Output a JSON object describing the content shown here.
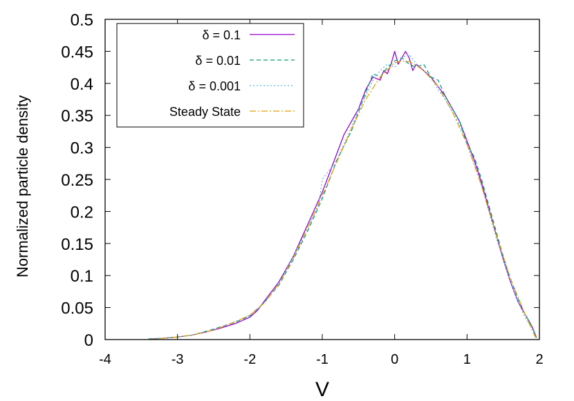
{
  "chart_data": {
    "type": "line",
    "xlabel": "V",
    "ylabel": "Normalized particle density",
    "xlim": [
      -4,
      2
    ],
    "ylim": [
      0,
      0.5
    ],
    "xticks": [
      -4,
      -3,
      -2,
      -1,
      0,
      1,
      2
    ],
    "xtick_labels": [
      "-4",
      "-3",
      "-2",
      "-1",
      "0",
      "1",
      "2"
    ],
    "yticks": [
      0,
      0.05,
      0.1,
      0.15,
      0.2,
      0.25,
      0.3,
      0.35,
      0.4,
      0.45,
      0.5
    ],
    "ytick_labels": [
      "0",
      "0.05",
      "0.1",
      "0.15",
      "0.2",
      "0.25",
      "0.3",
      "0.35",
      "0.4",
      "0.45",
      "0.5"
    ],
    "grid": false,
    "legend_position": "top-left",
    "series": [
      {
        "name": "δ = 0.1",
        "color": "#9400d3",
        "style": "solid",
        "x": [
          -3.4,
          -3.2,
          -3.0,
          -2.8,
          -2.6,
          -2.4,
          -2.2,
          -2.1,
          -2.0,
          -1.9,
          -1.8,
          -1.7,
          -1.6,
          -1.5,
          -1.4,
          -1.3,
          -1.2,
          -1.1,
          -1.0,
          -0.9,
          -0.8,
          -0.7,
          -0.6,
          -0.5,
          -0.4,
          -0.3,
          -0.2,
          -0.15,
          -0.1,
          -0.05,
          0.0,
          0.05,
          0.1,
          0.15,
          0.2,
          0.25,
          0.3,
          0.4,
          0.5,
          0.6,
          0.7,
          0.8,
          0.9,
          1.0,
          1.1,
          1.2,
          1.3,
          1.4,
          1.5,
          1.6,
          1.7,
          1.8,
          1.9,
          1.96
        ],
        "y": [
          0.001,
          0.002,
          0.004,
          0.007,
          0.012,
          0.018,
          0.025,
          0.03,
          0.035,
          0.045,
          0.06,
          0.075,
          0.09,
          0.11,
          0.13,
          0.155,
          0.18,
          0.205,
          0.23,
          0.26,
          0.29,
          0.32,
          0.34,
          0.36,
          0.39,
          0.41,
          0.405,
          0.42,
          0.415,
          0.43,
          0.45,
          0.43,
          0.44,
          0.45,
          0.44,
          0.42,
          0.43,
          0.42,
          0.41,
          0.395,
          0.38,
          0.36,
          0.34,
          0.31,
          0.28,
          0.245,
          0.205,
          0.165,
          0.125,
          0.09,
          0.06,
          0.04,
          0.02,
          0.003
        ]
      },
      {
        "name": "δ = 0.01",
        "color": "#009e73",
        "style": "dashed",
        "x": [
          -3.4,
          -3.2,
          -3.0,
          -2.8,
          -2.6,
          -2.4,
          -2.2,
          -2.0,
          -1.8,
          -1.6,
          -1.4,
          -1.2,
          -1.0,
          -0.8,
          -0.6,
          -0.5,
          -0.4,
          -0.3,
          -0.2,
          -0.1,
          0.0,
          0.1,
          0.2,
          0.3,
          0.4,
          0.5,
          0.6,
          0.7,
          0.8,
          0.9,
          1.0,
          1.1,
          1.2,
          1.3,
          1.4,
          1.5,
          1.6,
          1.7,
          1.8,
          1.9,
          1.96
        ],
        "y": [
          0.001,
          0.002,
          0.004,
          0.007,
          0.013,
          0.02,
          0.027,
          0.037,
          0.058,
          0.085,
          0.125,
          0.17,
          0.22,
          0.28,
          0.325,
          0.355,
          0.385,
          0.415,
          0.41,
          0.425,
          0.435,
          0.44,
          0.43,
          0.425,
          0.43,
          0.41,
          0.405,
          0.38,
          0.36,
          0.34,
          0.305,
          0.285,
          0.25,
          0.21,
          0.17,
          0.13,
          0.095,
          0.065,
          0.04,
          0.02,
          0.003
        ]
      },
      {
        "name": "δ = 0.001",
        "color": "#56b4e9",
        "style": "dotted",
        "x": [
          -3.4,
          -3.2,
          -3.0,
          -2.8,
          -2.6,
          -2.4,
          -2.2,
          -2.0,
          -1.8,
          -1.6,
          -1.4,
          -1.2,
          -1.05,
          -1.0,
          -0.8,
          -0.6,
          -0.5,
          -0.4,
          -0.3,
          -0.2,
          -0.1,
          0.0,
          0.1,
          0.2,
          0.3,
          0.4,
          0.5,
          0.6,
          0.7,
          0.8,
          0.9,
          1.0,
          1.1,
          1.2,
          1.3,
          1.4,
          1.5,
          1.6,
          1.7,
          1.8,
          1.9,
          1.96
        ],
        "y": [
          0.001,
          0.002,
          0.004,
          0.007,
          0.012,
          0.02,
          0.028,
          0.038,
          0.058,
          0.088,
          0.13,
          0.175,
          0.21,
          0.25,
          0.28,
          0.33,
          0.36,
          0.38,
          0.405,
          0.42,
          0.43,
          0.425,
          0.44,
          0.445,
          0.43,
          0.42,
          0.41,
          0.39,
          0.375,
          0.355,
          0.335,
          0.305,
          0.275,
          0.24,
          0.2,
          0.16,
          0.125,
          0.09,
          0.06,
          0.035,
          0.017,
          0.002
        ]
      },
      {
        "name": "Steady State",
        "color": "#e69f00",
        "style": "dash-dot",
        "x": [
          -3.4,
          -3.2,
          -3.0,
          -2.8,
          -2.6,
          -2.4,
          -2.2,
          -2.0,
          -1.8,
          -1.6,
          -1.4,
          -1.2,
          -1.0,
          -0.8,
          -0.6,
          -0.4,
          -0.2,
          0.0,
          0.1,
          0.2,
          0.3,
          0.4,
          0.6,
          0.8,
          1.0,
          1.2,
          1.4,
          1.6,
          1.8,
          1.96
        ],
        "y": [
          0.0,
          0.002,
          0.004,
          0.007,
          0.012,
          0.019,
          0.028,
          0.038,
          0.057,
          0.087,
          0.127,
          0.175,
          0.225,
          0.277,
          0.328,
          0.375,
          0.41,
          0.432,
          0.435,
          0.434,
          0.428,
          0.42,
          0.395,
          0.355,
          0.305,
          0.24,
          0.165,
          0.095,
          0.04,
          0.0
        ]
      }
    ]
  }
}
